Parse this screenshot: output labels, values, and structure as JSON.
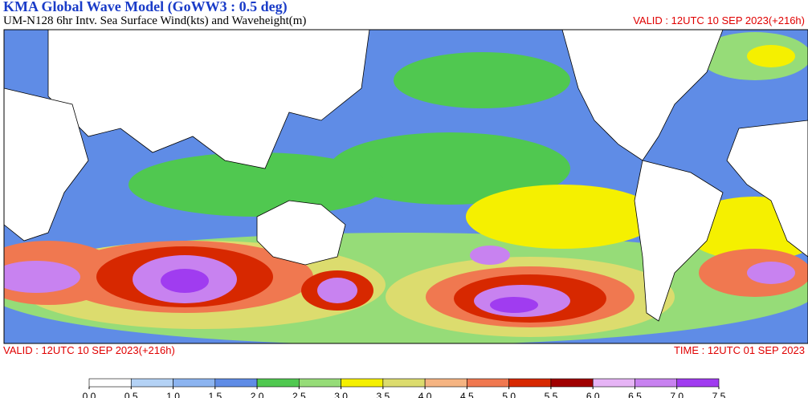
{
  "header": {
    "title": "KMA  Global Wave Model (GoWW3 : 0.5 deg)",
    "subtitle": "UM-N128  6hr Intv. Sea Surface Wind(kts) and Waveheight(m)",
    "valid": "VALID : 12UTC 10 SEP 2023(+216h)"
  },
  "footer": {
    "valid": "VALID : 12UTC 10 SEP 2023(+216h)",
    "time": "TIME : 12UTC 01 SEP 2023"
  },
  "colorbar": {
    "colors": [
      "#ffffff",
      "#b4d2f5",
      "#8cb4f0",
      "#5f8ce6",
      "#50c850",
      "#96dc78",
      "#f5f000",
      "#dcdc6e",
      "#f5b482",
      "#f07850",
      "#d72800",
      "#a00000",
      "#e6b4f5",
      "#c882f0",
      "#a03cf0"
    ],
    "ticks": [
      {
        "value": 0,
        "label": "0.0"
      },
      0.5,
      {
        "value": 1,
        "label": "1.0"
      },
      1.5,
      {
        "value": 2,
        "label": "2.0"
      },
      2.5,
      {
        "value": 3,
        "label": "3.0"
      },
      3.5,
      {
        "value": 4,
        "label": "4.0"
      },
      4.5,
      {
        "value": 5,
        "label": "5.0"
      },
      5.5,
      {
        "value": 6,
        "label": "6.0"
      },
      6.5,
      {
        "value": 7,
        "label": "7.0"
      },
      7.5
    ]
  }
}
